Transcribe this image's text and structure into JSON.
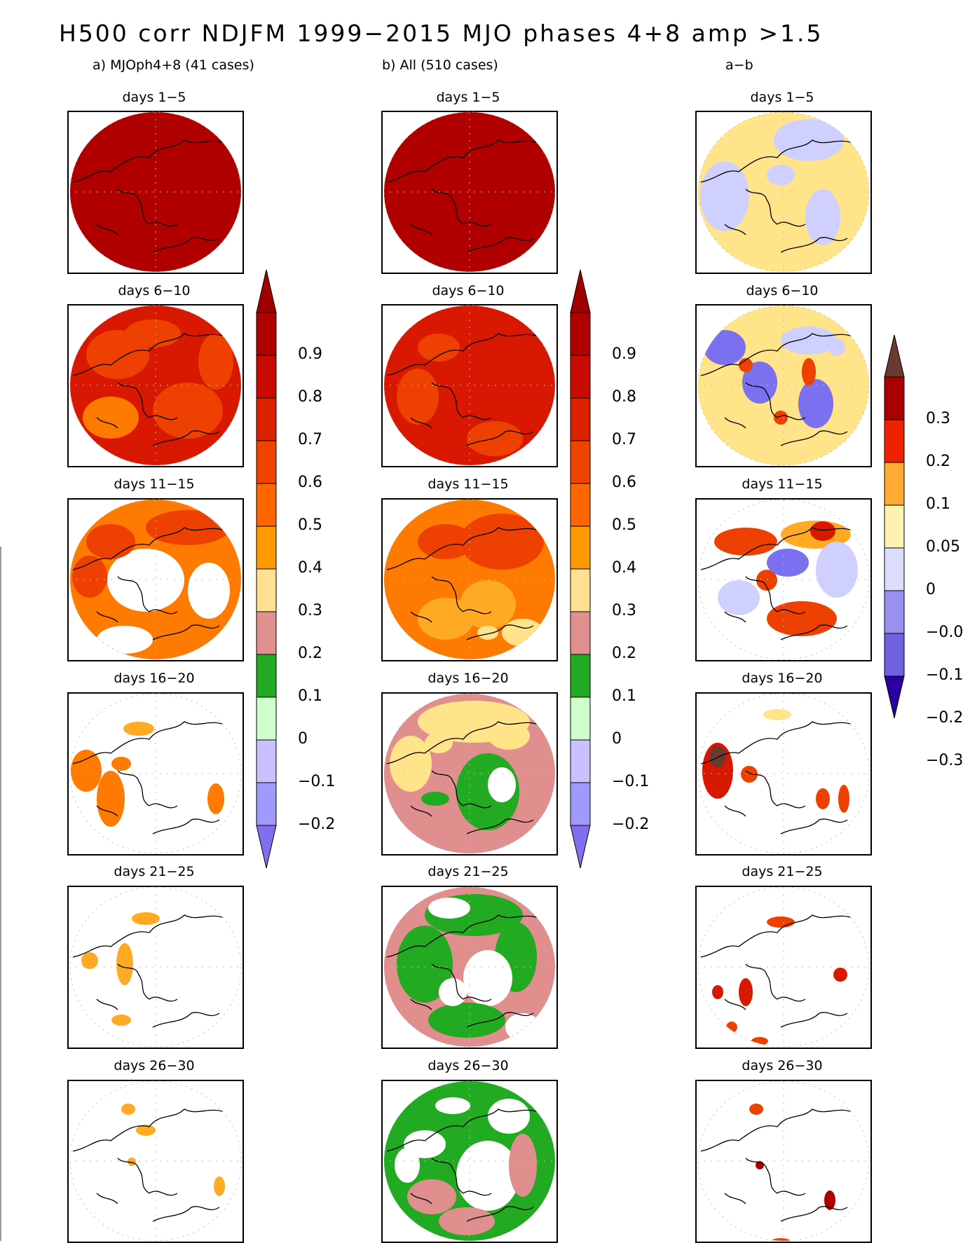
{
  "title": "H500 corr NDJFM 1999−2015 MJO phases 4+8 amp >1.5",
  "columns": [
    {
      "id": "a",
      "label": "a) MJOph4+8 (41 cases)"
    },
    {
      "id": "b",
      "label": "b) All (510 cases)"
    },
    {
      "id": "c",
      "label": "a−b"
    }
  ],
  "panel_titles": [
    "days 1−5",
    "days 6−10",
    "days 11−15",
    "days 16−20",
    "days 21−25",
    "days 26−30"
  ],
  "colorbar_main": {
    "labels": [
      "0.9",
      "0.8",
      "0.7",
      "0.6",
      "0.5",
      "0.4",
      "0.3",
      "0.2",
      "0.1",
      "0",
      "−0.1",
      "−0.2"
    ],
    "colors": [
      "#b00000",
      "#c80a00",
      "#dd2200",
      "#ee4400",
      "#ff6600",
      "#ff9900",
      "#ffe090",
      "#e09090",
      "#22aa22",
      "#ccffcc",
      "#c8c0ff",
      "#a09aff",
      "#8070f0"
    ],
    "top_arrow": "#a00000",
    "bottom_arrow": "#8070f0"
  },
  "colorbar_diff": {
    "labels": [
      "0.3",
      "0.2",
      "0.1",
      "0.05",
      "0",
      "−0.0",
      "−0.1",
      "−0.2",
      "−0.3"
    ],
    "colors": [
      "#aa0000",
      "#ee2200",
      "#ffaa33",
      "#fff2b0",
      "#dcdcff",
      "#9a90f0",
      "#6e60e0",
      "#3a30c0"
    ],
    "top_arrow": "#6a3a30",
    "bottom_arrow": "#2a00a0"
  },
  "palette": {
    "dark_red": "#b00000",
    "red": "#d81800",
    "red_orange": "#ee4000",
    "orange": "#ff7a00",
    "light_orange": "#ffaa22",
    "pale_yellow": "#ffe48a",
    "pink": "#e08e8e",
    "green": "#22aa22",
    "lavender": "#d0d0ff",
    "blue": "#7a70f0",
    "brown": "#6a3a30"
  }
}
